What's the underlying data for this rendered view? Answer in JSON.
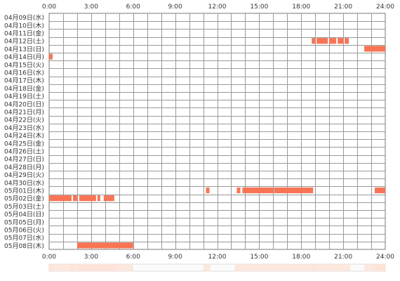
{
  "chart_data": {
    "type": "timeline",
    "x_unit": "hour",
    "x_ticks": [
      "0:00",
      "3:00",
      "6:00",
      "9:00",
      "12:00",
      "15:00",
      "18:00",
      "21:00",
      "24:00"
    ],
    "xlim": [
      0,
      24
    ],
    "grid": true,
    "rows": [
      {
        "label": "04月09日(水)",
        "segments": []
      },
      {
        "label": "04月10日(木)",
        "segments": []
      },
      {
        "label": "04月11日(金)",
        "segments": []
      },
      {
        "label": "04月12日(土)",
        "segments": [
          [
            18.75,
            19.0
          ],
          [
            19.1,
            19.9
          ],
          [
            20.0,
            20.5
          ],
          [
            20.6,
            21.0
          ],
          [
            21.1,
            21.4
          ]
        ]
      },
      {
        "label": "04月13日(日)",
        "segments": [
          [
            22.5,
            24.0
          ]
        ]
      },
      {
        "label": "04月14日(月)",
        "segments": [
          [
            0.0,
            0.25
          ]
        ]
      },
      {
        "label": "04月15日(火)",
        "segments": []
      },
      {
        "label": "04月16日(水)",
        "segments": []
      },
      {
        "label": "04月17日(木)",
        "segments": []
      },
      {
        "label": "04月18日(金)",
        "segments": []
      },
      {
        "label": "04月19日(土)",
        "segments": []
      },
      {
        "label": "04月20日(日)",
        "segments": []
      },
      {
        "label": "04月21日(月)",
        "segments": []
      },
      {
        "label": "04月22日(火)",
        "segments": []
      },
      {
        "label": "04月23日(水)",
        "segments": []
      },
      {
        "label": "04月24日(木)",
        "segments": []
      },
      {
        "label": "04月25日(金)",
        "segments": []
      },
      {
        "label": "04月26日(土)",
        "segments": []
      },
      {
        "label": "04月27日(日)",
        "segments": []
      },
      {
        "label": "04月28日(月)",
        "segments": []
      },
      {
        "label": "04月29日(火)",
        "segments": []
      },
      {
        "label": "04月30日(水)",
        "segments": []
      },
      {
        "label": "05月01日(木)",
        "segments": [
          [
            11.2,
            11.45
          ],
          [
            13.4,
            13.65
          ],
          [
            13.8,
            16.0
          ],
          [
            16.05,
            18.85
          ],
          [
            23.25,
            24.0
          ]
        ]
      },
      {
        "label": "05月02日(金)",
        "segments": [
          [
            0.0,
            1.6
          ],
          [
            1.7,
            2.0
          ],
          [
            2.15,
            3.35
          ],
          [
            3.45,
            3.65
          ],
          [
            3.9,
            4.65
          ]
        ]
      },
      {
        "label": "05月03日(土)",
        "segments": []
      },
      {
        "label": "05月04日(日)",
        "segments": []
      },
      {
        "label": "05月05日(月)",
        "segments": []
      },
      {
        "label": "05月06日(火)",
        "segments": []
      },
      {
        "label": "05月07日(水)",
        "segments": []
      },
      {
        "label": "05月08日(木)",
        "segments": [
          [
            2.0,
            6.0
          ]
        ]
      }
    ],
    "bar_color": "#f87454",
    "grid_color": "#999999",
    "summary_bar_color": "#fde3d8"
  }
}
